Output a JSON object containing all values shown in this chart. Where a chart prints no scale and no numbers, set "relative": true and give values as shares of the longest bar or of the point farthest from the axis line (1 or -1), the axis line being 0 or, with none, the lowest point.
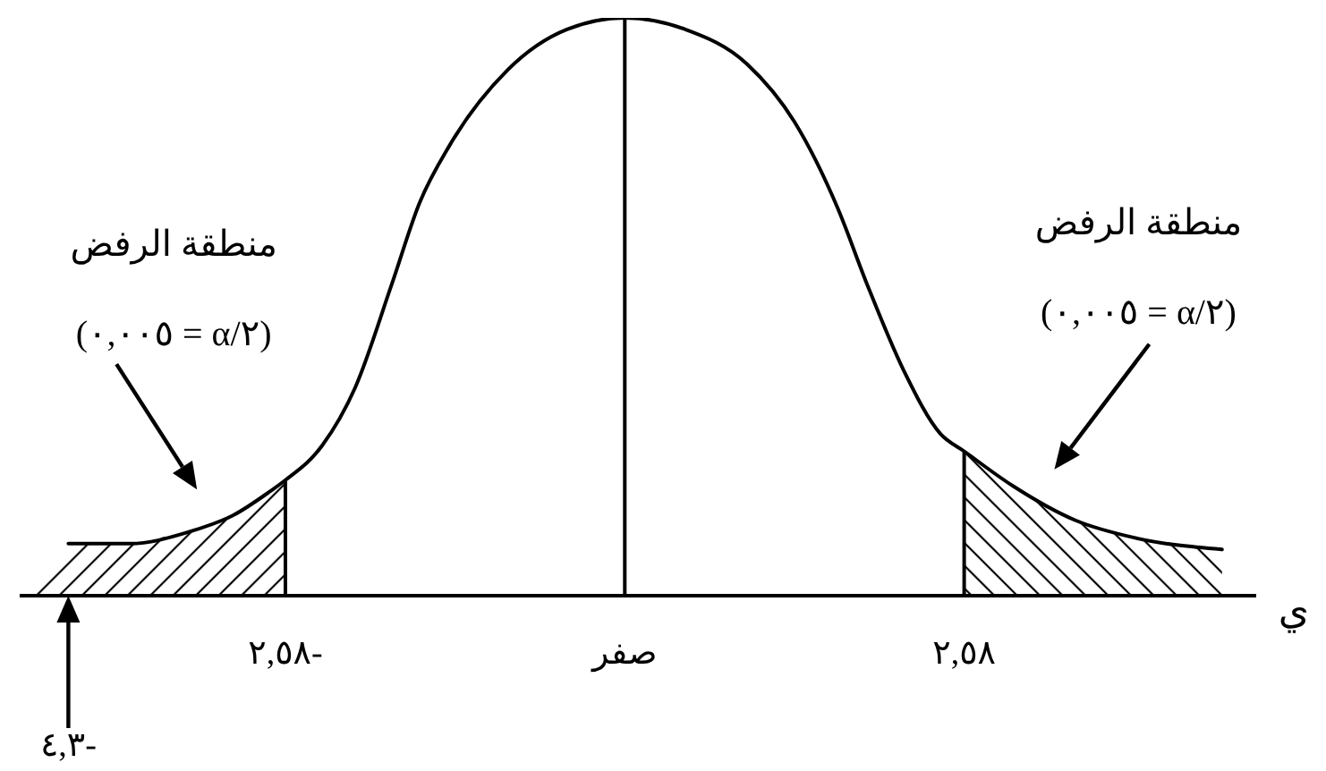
{
  "chart_data": {
    "type": "line",
    "relative": true,
    "xlabel": "ي",
    "color": "#000000",
    "x": [
      -4.23,
      -3.76,
      -3.32,
      -2.97,
      -2.7,
      -2.58,
      -2.3,
      -2.05,
      -1.77,
      -1.56,
      -1.33,
      -0.89,
      -0.44,
      0,
      0.46,
      0.93,
      1.29,
      1.62,
      1.84,
      2.12,
      2.4,
      2.58,
      2.95,
      3.43,
      3.88,
      4.54
    ],
    "values": [
      0.09,
      0.09,
      0.11,
      0.14,
      0.18,
      0.2,
      0.26,
      0.36,
      0.54,
      0.68,
      0.78,
      0.91,
      0.98,
      1,
      0.98,
      0.92,
      0.82,
      0.67,
      0.54,
      0.39,
      0.28,
      0.25,
      0.19,
      0.13,
      0.1,
      0.08
    ],
    "xlim": [
      -4.6,
      4.8
    ],
    "xticks": [
      {
        "value": -2.58,
        "label": "٢,٥٨-"
      },
      {
        "value": 0,
        "label": "صفر"
      },
      {
        "value": 2.58,
        "label": "٢,٥٨"
      }
    ],
    "ref_lines": [
      {
        "axis": "x",
        "value": -2.58
      },
      {
        "axis": "x",
        "value": 0
      },
      {
        "axis": "x",
        "value": 2.58
      }
    ],
    "bands": [
      {
        "axis": "x",
        "from": -4.5,
        "to": -2.58,
        "color": "#000000",
        "label": "منطقة الرفض (٠,٠٠٥ = α/٢)"
      },
      {
        "axis": "x",
        "from": 2.58,
        "to": 4.54,
        "color": "#000000",
        "label": "منطقة الرفض (٠,٠٠٥ = α/٢)"
      }
    ],
    "annotations": [
      "٤,٣-"
    ]
  }
}
